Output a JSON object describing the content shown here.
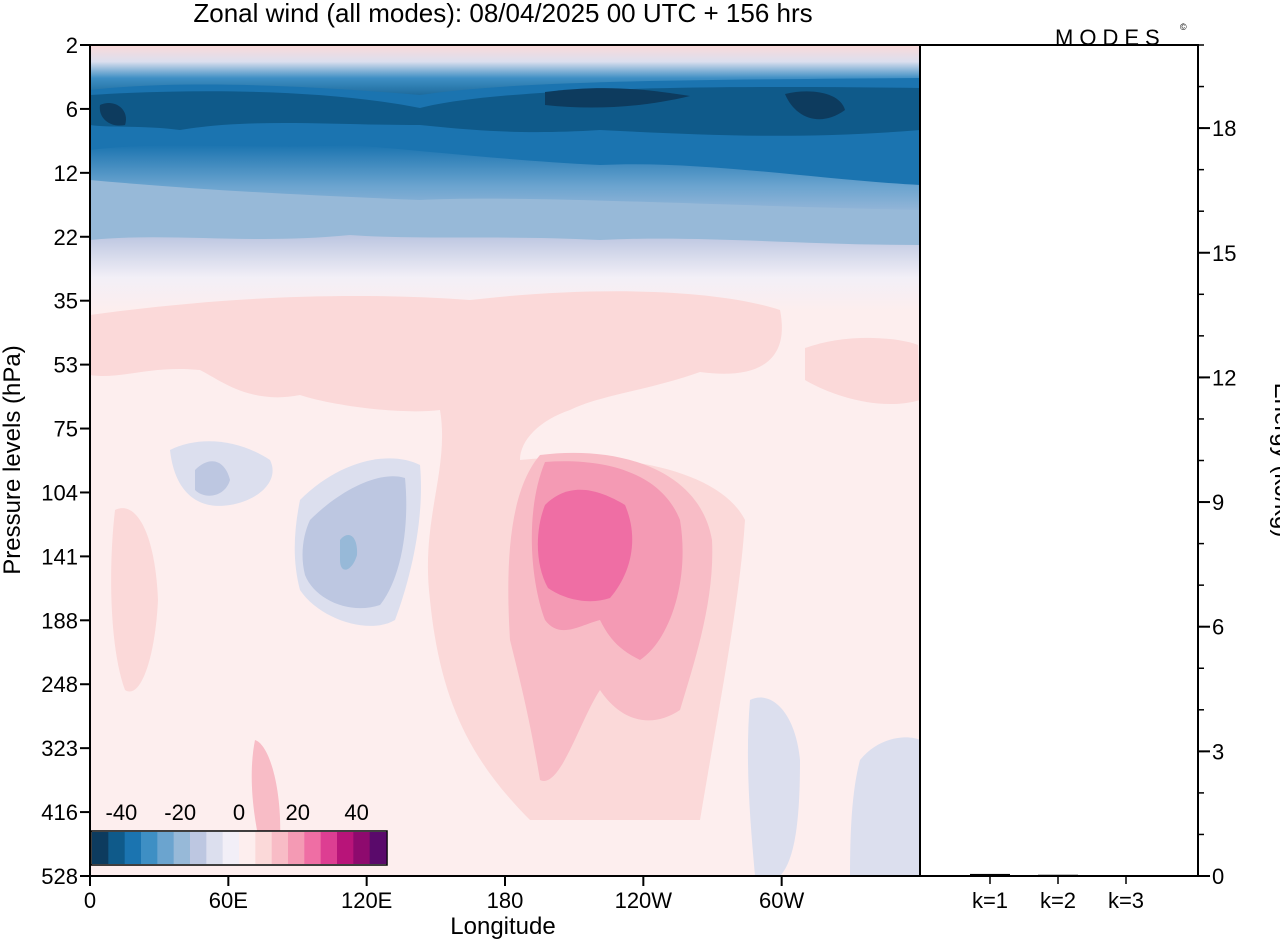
{
  "title": "Zonal wind (all modes):  08/04/2025  00 UTC  + 156 hrs",
  "logo": "MODES",
  "logo_mark": "©",
  "chart_data": [
    {
      "type": "heatmap",
      "title": "Zonal wind (all modes):  08/04/2025  00 UTC  + 156 hrs",
      "xlabel": "Longitude",
      "ylabel": "Pressure levels (hPa)",
      "x_ticks": [
        "0",
        "60E",
        "120E",
        "180",
        "120W",
        "60W"
      ],
      "x_tick_values": [
        0,
        60,
        120,
        180,
        240,
        300
      ],
      "x_range": [
        0,
        360
      ],
      "y_ticks": [
        "2",
        "6",
        "12",
        "22",
        "35",
        "53",
        "75",
        "104",
        "141",
        "188",
        "248",
        "323",
        "416",
        "528"
      ],
      "y_scale": "categorical (model levels, top to bottom)",
      "colorbar": {
        "ticks": [
          "-40",
          "-20",
          "0",
          "20",
          "40"
        ],
        "tick_values": [
          -40,
          -20,
          0,
          20,
          40
        ],
        "range": [
          -50,
          50
        ],
        "step": 5,
        "colors": [
          "#0d3b5e",
          "#0f5a8a",
          "#1b74b0",
          "#3e8fc4",
          "#6ba4cf",
          "#97b9d8",
          "#bdc7e1",
          "#dcdfee",
          "#f2eff7",
          "#fdeeee",
          "#fbd9d9",
          "#f8bcc6",
          "#f49ab4",
          "#ef6ea4",
          "#dd3e92",
          "#b81479",
          "#8e0a6e",
          "#5a0a6b"
        ]
      },
      "features": [
        {
          "name": "upper easterly band",
          "level_range": [
            "2",
            "22"
          ],
          "value_range": [
            -50,
            -15
          ]
        },
        {
          "name": "westerly maximum",
          "lon_range": [
            180,
            245
          ],
          "level_range": [
            "75",
            "248"
          ],
          "value_range": [
            15,
            30
          ]
        },
        {
          "name": "weak easterlies near 60E-120E",
          "lon_range": [
            45,
            130
          ],
          "level_range": [
            "75",
            "248"
          ],
          "value_range": [
            -10,
            -3
          ]
        },
        {
          "name": "strongest easterlies",
          "lon_range": [
            190,
            310
          ],
          "level_range": [
            "6",
            "6"
          ],
          "value_range": [
            -50,
            -45
          ]
        }
      ]
    },
    {
      "type": "bar",
      "ylabel": "Energy (kJ/kg)",
      "categories": [
        "k=1",
        "k=2",
        "k=3"
      ],
      "values": [
        0.05,
        0.03,
        0.02
      ],
      "ylim": [
        0,
        20
      ],
      "y_ticks": [
        "0",
        "3",
        "6",
        "9",
        "12",
        "15",
        "18"
      ],
      "y_tick_values": [
        0,
        3,
        6,
        9,
        12,
        15,
        18
      ],
      "minor_step": 1
    }
  ]
}
